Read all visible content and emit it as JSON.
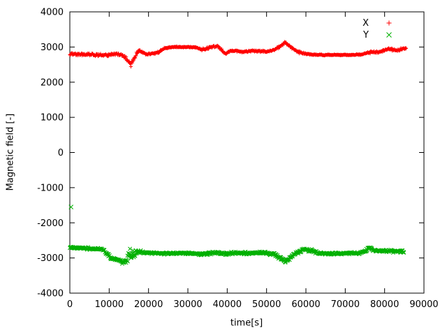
{
  "chart_data": {
    "type": "scatter",
    "title": "",
    "xlabel": "time[s]",
    "ylabel": "Magnetic field [-]",
    "xlim": [
      0,
      90000
    ],
    "ylim": [
      -4000,
      4000
    ],
    "x_ticks": [
      0,
      10000,
      20000,
      30000,
      40000,
      50000,
      60000,
      70000,
      80000,
      90000
    ],
    "y_ticks": [
      -4000,
      -3000,
      -2000,
      -1000,
      0,
      1000,
      2000,
      3000,
      4000
    ],
    "grid": false,
    "legend_position": "top-right-inside",
    "legend": [
      {
        "label": "X",
        "marker": "plus",
        "color": "#ff0000"
      },
      {
        "label": "Y",
        "marker": "cross",
        "color": "#00b000"
      }
    ],
    "sample_step": 110,
    "series": [
      {
        "name": "X",
        "marker": "plus",
        "color": "#ff0000",
        "keypoints": [
          [
            0,
            2800,
            50
          ],
          [
            3000,
            2790,
            55
          ],
          [
            6000,
            2780,
            55
          ],
          [
            9000,
            2760,
            60
          ],
          [
            11000,
            2800,
            55
          ],
          [
            13000,
            2790,
            50
          ],
          [
            14500,
            2650,
            90
          ],
          [
            15500,
            2500,
            90
          ],
          [
            16500,
            2720,
            90
          ],
          [
            17500,
            2890,
            60
          ],
          [
            18500,
            2850,
            50
          ],
          [
            19500,
            2790,
            45
          ],
          [
            21000,
            2810,
            40
          ],
          [
            22500,
            2850,
            40
          ],
          [
            24000,
            2960,
            30
          ],
          [
            26000,
            3000,
            25
          ],
          [
            28000,
            3000,
            22
          ],
          [
            30000,
            3000,
            22
          ],
          [
            32000,
            2990,
            30
          ],
          [
            33500,
            2930,
            45
          ],
          [
            35000,
            2960,
            55
          ],
          [
            36500,
            3010,
            55
          ],
          [
            37500,
            3030,
            45
          ],
          [
            38500,
            2920,
            55
          ],
          [
            39500,
            2800,
            55
          ],
          [
            40500,
            2870,
            45
          ],
          [
            42000,
            2900,
            35
          ],
          [
            44000,
            2860,
            35
          ],
          [
            46000,
            2890,
            35
          ],
          [
            48000,
            2880,
            35
          ],
          [
            50000,
            2870,
            35
          ],
          [
            52000,
            2920,
            40
          ],
          [
            53500,
            3020,
            40
          ],
          [
            54700,
            3130,
            45
          ],
          [
            56000,
            3030,
            50
          ],
          [
            57500,
            2890,
            55
          ],
          [
            59000,
            2820,
            45
          ],
          [
            61000,
            2790,
            30
          ],
          [
            63000,
            2780,
            25
          ],
          [
            66000,
            2775,
            22
          ],
          [
            69000,
            2775,
            22
          ],
          [
            72000,
            2775,
            22
          ],
          [
            74500,
            2790,
            30
          ],
          [
            76000,
            2850,
            40
          ],
          [
            78000,
            2860,
            45
          ],
          [
            80000,
            2900,
            55
          ],
          [
            81500,
            2950,
            55
          ],
          [
            83000,
            2890,
            55
          ],
          [
            84500,
            2950,
            45
          ],
          [
            85500,
            2960,
            40
          ]
        ],
        "outliers": []
      },
      {
        "name": "Y",
        "marker": "cross",
        "color": "#00b000",
        "keypoints": [
          [
            0,
            -2700,
            45
          ],
          [
            3000,
            -2720,
            45
          ],
          [
            6000,
            -2740,
            45
          ],
          [
            8500,
            -2760,
            50
          ],
          [
            9500,
            -2880,
            60
          ],
          [
            10500,
            -3000,
            60
          ],
          [
            11500,
            -3040,
            60
          ],
          [
            12500,
            -3060,
            70
          ],
          [
            13500,
            -3120,
            70
          ],
          [
            14500,
            -3050,
            120
          ],
          [
            15300,
            -2900,
            230
          ],
          [
            16200,
            -2880,
            200
          ],
          [
            17000,
            -2820,
            80
          ],
          [
            18000,
            -2830,
            60
          ],
          [
            20000,
            -2850,
            50
          ],
          [
            22000,
            -2860,
            45
          ],
          [
            24000,
            -2870,
            45
          ],
          [
            27000,
            -2860,
            45
          ],
          [
            30000,
            -2870,
            45
          ],
          [
            32000,
            -2880,
            50
          ],
          [
            34000,
            -2900,
            55
          ],
          [
            35500,
            -2870,
            75
          ],
          [
            37000,
            -2850,
            55
          ],
          [
            38500,
            -2870,
            60
          ],
          [
            40000,
            -2880,
            70
          ],
          [
            42000,
            -2860,
            55
          ],
          [
            44000,
            -2870,
            50
          ],
          [
            46000,
            -2860,
            50
          ],
          [
            48000,
            -2850,
            55
          ],
          [
            50000,
            -2860,
            55
          ],
          [
            52000,
            -2880,
            55
          ],
          [
            53500,
            -3020,
            70
          ],
          [
            54800,
            -3090,
            70
          ],
          [
            56000,
            -3000,
            60
          ],
          [
            57200,
            -2880,
            55
          ],
          [
            58500,
            -2800,
            80
          ],
          [
            60000,
            -2760,
            90
          ],
          [
            61500,
            -2790,
            80
          ],
          [
            63000,
            -2860,
            50
          ],
          [
            65000,
            -2880,
            45
          ],
          [
            68000,
            -2870,
            45
          ],
          [
            71000,
            -2870,
            45
          ],
          [
            73500,
            -2860,
            50
          ],
          [
            75000,
            -2820,
            55
          ],
          [
            76300,
            -2710,
            75
          ],
          [
            77500,
            -2790,
            60
          ],
          [
            79000,
            -2810,
            55
          ],
          [
            81000,
            -2800,
            55
          ],
          [
            83000,
            -2810,
            50
          ],
          [
            85000,
            -2820,
            45
          ]
        ],
        "outliers": [
          [
            300,
            -1550
          ]
        ]
      }
    ]
  }
}
